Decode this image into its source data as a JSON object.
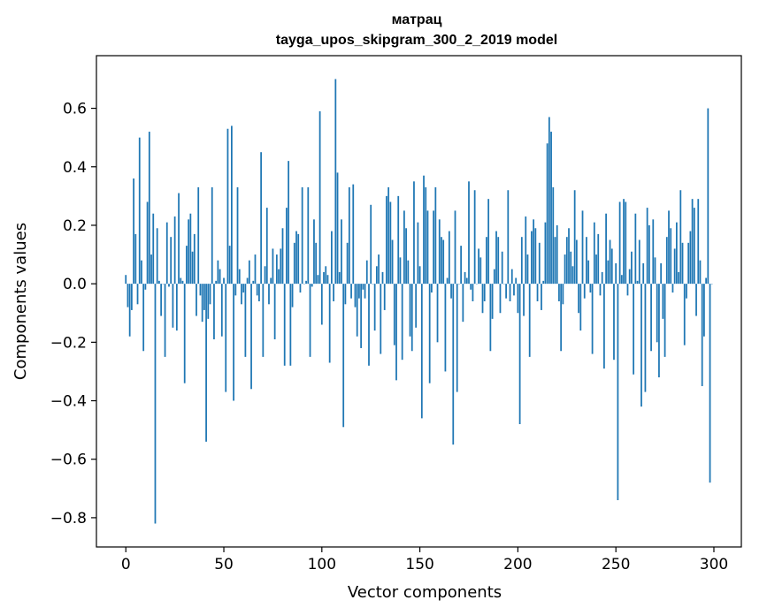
{
  "chart_data": {
    "type": "bar",
    "title": "матрац",
    "subtitle": "tayga_upos_skipgram_300_2_2019 model",
    "xlabel": "Vector components",
    "ylabel": "Components values",
    "xlim": [
      -15,
      314
    ],
    "ylim": [
      -0.9,
      0.78
    ],
    "xticks": [
      0,
      50,
      100,
      150,
      200,
      250,
      300
    ],
    "xtick_labels": [
      "0",
      "50",
      "100",
      "150",
      "200",
      "250",
      "300"
    ],
    "yticks": [
      -0.8,
      -0.6,
      -0.4,
      -0.2,
      0.0,
      0.2,
      0.4,
      0.6
    ],
    "ytick_labels": [
      "−0.8",
      "−0.6",
      "−0.4",
      "−0.2",
      "0.0",
      "0.2",
      "0.4",
      "0.6"
    ],
    "grid": false,
    "bar_color": "#1f77b4",
    "x": [
      0,
      1,
      2,
      3,
      4,
      5,
      6,
      7,
      8,
      9,
      10,
      11,
      12,
      13,
      14,
      15,
      16,
      17,
      18,
      19,
      20,
      21,
      22,
      23,
      24,
      25,
      26,
      27,
      28,
      29,
      30,
      31,
      32,
      33,
      34,
      35,
      36,
      37,
      38,
      39,
      40,
      41,
      42,
      43,
      44,
      45,
      46,
      47,
      48,
      49,
      50,
      51,
      52,
      53,
      54,
      55,
      56,
      57,
      58,
      59,
      60,
      61,
      62,
      63,
      64,
      65,
      66,
      67,
      68,
      69,
      70,
      71,
      72,
      73,
      74,
      75,
      76,
      77,
      78,
      79,
      80,
      81,
      82,
      83,
      84,
      85,
      86,
      87,
      88,
      89,
      90,
      91,
      92,
      93,
      94,
      95,
      96,
      97,
      98,
      99,
      100,
      101,
      102,
      103,
      104,
      105,
      106,
      107,
      108,
      109,
      110,
      111,
      112,
      113,
      114,
      115,
      116,
      117,
      118,
      119,
      120,
      121,
      122,
      123,
      124,
      125,
      126,
      127,
      128,
      129,
      130,
      131,
      132,
      133,
      134,
      135,
      136,
      137,
      138,
      139,
      140,
      141,
      142,
      143,
      144,
      145,
      146,
      147,
      148,
      149,
      150,
      151,
      152,
      153,
      154,
      155,
      156,
      157,
      158,
      159,
      160,
      161,
      162,
      163,
      164,
      165,
      166,
      167,
      168,
      169,
      170,
      171,
      172,
      173,
      174,
      175,
      176,
      177,
      178,
      179,
      180,
      181,
      182,
      183,
      184,
      185,
      186,
      187,
      188,
      189,
      190,
      191,
      192,
      193,
      194,
      195,
      196,
      197,
      198,
      199,
      200,
      201,
      202,
      203,
      204,
      205,
      206,
      207,
      208,
      209,
      210,
      211,
      212,
      213,
      214,
      215,
      216,
      217,
      218,
      219,
      220,
      221,
      222,
      223,
      224,
      225,
      226,
      227,
      228,
      229,
      230,
      231,
      232,
      233,
      234,
      235,
      236,
      237,
      238,
      239,
      240,
      241,
      242,
      243,
      244,
      245,
      246,
      247,
      248,
      249,
      250,
      251,
      252,
      253,
      254,
      255,
      256,
      257,
      258,
      259,
      260,
      261,
      262,
      263,
      264,
      265,
      266,
      267,
      268,
      269,
      270,
      271,
      272,
      273,
      274,
      275,
      276,
      277,
      278,
      279,
      280,
      281,
      282,
      283,
      284,
      285,
      286,
      287,
      288,
      289,
      290,
      291,
      292,
      293,
      294,
      295,
      296,
      297,
      298,
      299
    ],
    "values": [
      0.03,
      -0.08,
      -0.18,
      -0.09,
      0.36,
      0.17,
      -0.07,
      0.5,
      0.08,
      -0.23,
      -0.02,
      0.28,
      0.52,
      0.1,
      0.24,
      -0.82,
      0.19,
      0.01,
      -0.11,
      0.0,
      -0.25,
      0.21,
      -0.01,
      0.16,
      -0.15,
      0.23,
      -0.16,
      0.31,
      0.02,
      0.01,
      -0.34,
      0.13,
      0.22,
      0.24,
      0.11,
      0.17,
      -0.11,
      0.33,
      -0.04,
      -0.13,
      -0.09,
      -0.54,
      -0.12,
      -0.07,
      0.33,
      -0.19,
      0.01,
      0.08,
      0.05,
      -0.18,
      0.02,
      -0.37,
      0.53,
      0.13,
      0.54,
      -0.4,
      -0.04,
      0.33,
      0.05,
      -0.07,
      -0.03,
      -0.25,
      0.02,
      0.08,
      -0.36,
      0.01,
      0.1,
      -0.04,
      -0.06,
      0.45,
      -0.25,
      0.06,
      0.26,
      -0.07,
      0.02,
      0.12,
      -0.19,
      0.1,
      0.05,
      0.12,
      0.19,
      -0.28,
      0.26,
      0.42,
      -0.28,
      -0.08,
      0.14,
      0.18,
      0.17,
      -0.03,
      0.33,
      0.0,
      0.01,
      0.33,
      -0.25,
      -0.01,
      0.22,
      0.14,
      0.03,
      0.59,
      -0.14,
      0.04,
      0.06,
      0.03,
      -0.27,
      0.18,
      -0.06,
      0.7,
      0.38,
      0.04,
      0.22,
      -0.49,
      -0.07,
      0.14,
      0.33,
      -0.05,
      0.34,
      -0.08,
      -0.18,
      -0.05,
      -0.22,
      -0.02,
      -0.05,
      0.08,
      -0.28,
      0.27,
      0.0,
      -0.16,
      0.06,
      0.1,
      -0.24,
      0.04,
      -0.09,
      0.3,
      0.33,
      0.28,
      0.15,
      -0.21,
      -0.33,
      0.3,
      0.09,
      -0.26,
      0.25,
      0.19,
      0.08,
      -0.18,
      -0.23,
      0.35,
      -0.15,
      0.21,
      0.06,
      -0.46,
      0.37,
      0.33,
      0.25,
      -0.34,
      -0.03,
      0.25,
      0.33,
      -0.2,
      0.22,
      0.16,
      0.15,
      -0.3,
      0.02,
      0.18,
      -0.05,
      -0.55,
      0.25,
      -0.37,
      0.0,
      0.13,
      -0.13,
      0.04,
      0.02,
      0.35,
      -0.02,
      -0.06,
      0.32,
      0.0,
      0.12,
      0.09,
      -0.1,
      -0.06,
      0.16,
      0.29,
      -0.23,
      -0.12,
      0.05,
      0.18,
      0.16,
      -0.1,
      0.11,
      0.0,
      -0.05,
      0.32,
      -0.06,
      0.05,
      -0.04,
      0.02,
      -0.1,
      -0.48,
      0.16,
      -0.11,
      0.23,
      0.1,
      -0.25,
      0.18,
      0.22,
      0.19,
      -0.06,
      0.14,
      -0.09,
      0.01,
      0.21,
      0.48,
      0.57,
      0.52,
      0.33,
      0.16,
      0.2,
      -0.06,
      -0.23,
      -0.07,
      0.1,
      0.16,
      0.19,
      0.11,
      0.06,
      0.32,
      0.15,
      -0.1,
      -0.16,
      0.25,
      -0.05,
      0.16,
      0.08,
      -0.03,
      -0.24,
      0.21,
      0.1,
      0.17,
      -0.04,
      0.04,
      -0.29,
      0.24,
      0.08,
      0.15,
      0.12,
      -0.26,
      0.07,
      -0.74,
      0.28,
      0.03,
      0.29,
      0.28,
      -0.04,
      0.05,
      0.11,
      -0.31,
      0.24,
      0.01,
      0.15,
      -0.42,
      0.07,
      -0.37,
      0.26,
      0.2,
      -0.23,
      0.22,
      0.09,
      -0.2,
      -0.32,
      0.07,
      -0.12,
      -0.25,
      0.16,
      0.25,
      0.19,
      -0.03,
      0.12,
      0.21,
      0.04,
      0.32,
      0.14,
      -0.21,
      -0.05,
      0.14,
      0.18,
      0.29,
      0.26,
      -0.11,
      0.29,
      0.08,
      -0.35,
      -0.18,
      0.02,
      0.6,
      -0.68,
      0.0
    ]
  }
}
